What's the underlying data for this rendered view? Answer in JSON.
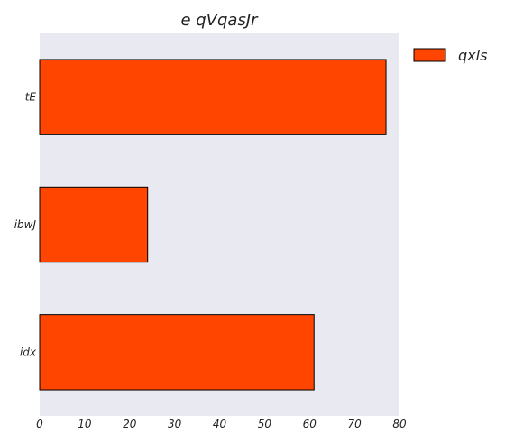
{
  "chart_data": {
    "type": "bar",
    "orientation": "horizontal",
    "title": "e qVqasJr",
    "categories": [
      "tE",
      "ibwJ",
      "idx"
    ],
    "series": [
      {
        "name": "qxls",
        "values": [
          77,
          24,
          61
        ]
      }
    ],
    "xlim": [
      0,
      80
    ],
    "xticks": [
      0,
      10,
      20,
      30,
      40,
      50,
      60,
      70,
      80
    ],
    "xlabel": "",
    "ylabel": "",
    "grid": false,
    "legend": "outside-top-right",
    "colors": {
      "bar_fill": "#ff4500",
      "bar_edge": "#000000",
      "plot_background": "#e9e9f1"
    }
  }
}
